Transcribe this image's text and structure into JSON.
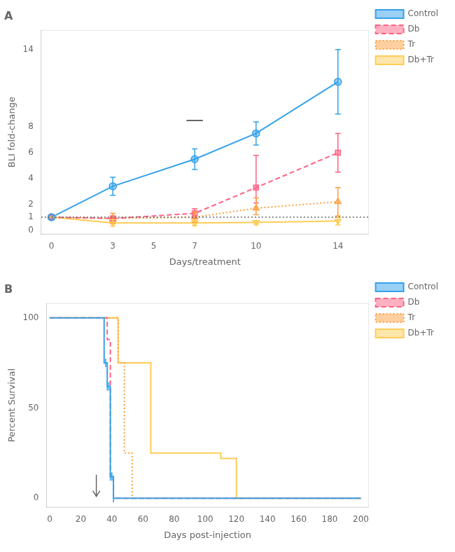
{
  "chart_data": [
    {
      "type": "line",
      "title": "A",
      "xlabel": "Days/treatment",
      "ylabel": "BLI fold-change",
      "x": [
        0,
        3,
        7,
        10,
        14
      ],
      "series": [
        {
          "name": "Control",
          "values": [
            1,
            3.4,
            5.5,
            7.5,
            11.5
          ],
          "errors_minus": [
            0,
            0.7,
            0.8,
            0.9,
            2.5
          ],
          "errors_plus": [
            0,
            0.7,
            0.8,
            0.9,
            2.5
          ],
          "marker": "circle",
          "line_style": "solid"
        },
        {
          "name": "Db",
          "values": [
            1,
            0.9,
            1.3,
            3.3,
            6.0
          ],
          "errors_minus": [
            0,
            0.2,
            0.35,
            1.2,
            1.5
          ],
          "errors_plus": [
            0,
            0.2,
            0.35,
            2.5,
            1.5
          ],
          "marker": "square",
          "line_style": "dashed"
        },
        {
          "name": "Tr",
          "values": [
            1,
            0.9,
            1.0,
            1.7,
            2.2
          ],
          "errors_minus": [
            0,
            0.4,
            0.4,
            0.5,
            1.1
          ],
          "errors_plus": [
            0,
            0.4,
            0.4,
            0.8,
            1.1
          ],
          "marker": "triangle-up",
          "line_style": "dotted"
        },
        {
          "name": "Db+Tr",
          "values": [
            1,
            0.55,
            0.55,
            0.6,
            0.7
          ],
          "errors_minus": [
            0,
            0.25,
            0.2,
            0.15,
            0.3
          ],
          "errors_plus": [
            0,
            0.25,
            0.2,
            0.15,
            0.3
          ],
          "marker": "triangle-down",
          "line_style": "solid"
        }
      ],
      "xlim": [
        -0.5,
        15.5
      ],
      "xticks": [
        0,
        3,
        5,
        7,
        10,
        14
      ],
      "ylim": [
        -0.3,
        15.5
      ],
      "yticks": [
        0,
        1,
        2,
        4,
        6,
        8,
        14
      ],
      "grid": false,
      "legend": "right",
      "reference_lines": [
        {
          "y": 1,
          "line_style": "dotted"
        }
      ],
      "segments": [
        {
          "x": [
            6.6,
            7.4
          ],
          "y": [
            8.5,
            8.5
          ]
        }
      ]
    },
    {
      "type": "step",
      "title": "B",
      "xlabel": "Days post-injection",
      "ylabel": "Percent Survival",
      "series": [
        {
          "name": "Control",
          "x": [
            0,
            35,
            35,
            37,
            37,
            39,
            39,
            41,
            41,
            200
          ],
          "values": [
            100,
            100,
            75,
            75,
            62,
            62,
            12,
            12,
            0,
            0
          ],
          "line_style": "solid",
          "censor_marks": {
            "x": [
              36,
              37,
              38,
              39,
              40,
              41
            ],
            "y": [
              75,
              62,
              62,
              12,
              12,
              0
            ]
          }
        },
        {
          "name": "Db",
          "x": [
            0,
            37,
            37,
            39,
            39,
            41,
            41,
            200
          ],
          "values": [
            100,
            100,
            88,
            88,
            12,
            12,
            0,
            0
          ],
          "line_style": "dashed"
        },
        {
          "name": "Tr",
          "x": [
            0,
            44,
            44,
            48,
            48,
            53,
            53,
            200
          ],
          "values": [
            100,
            100,
            75,
            75,
            25,
            25,
            0,
            0
          ],
          "line_style": "dotted"
        },
        {
          "name": "Db+Tr",
          "x": [
            0,
            44,
            44,
            65,
            65,
            110,
            110,
            120,
            120,
            200
          ],
          "values": [
            100,
            100,
            75,
            75,
            25,
            25,
            22,
            22,
            0,
            0
          ],
          "line_style": "solid"
        }
      ],
      "xlim": [
        -2,
        205
      ],
      "xticks": [
        0,
        20,
        40,
        60,
        80,
        100,
        120,
        140,
        160,
        180,
        200
      ],
      "ylim": [
        -5,
        108
      ],
      "yticks": [
        0,
        50,
        100
      ],
      "grid": false,
      "legend": "right",
      "arrows": [
        {
          "x": 30,
          "y_from": 13,
          "y_to": 1
        }
      ]
    }
  ]
}
